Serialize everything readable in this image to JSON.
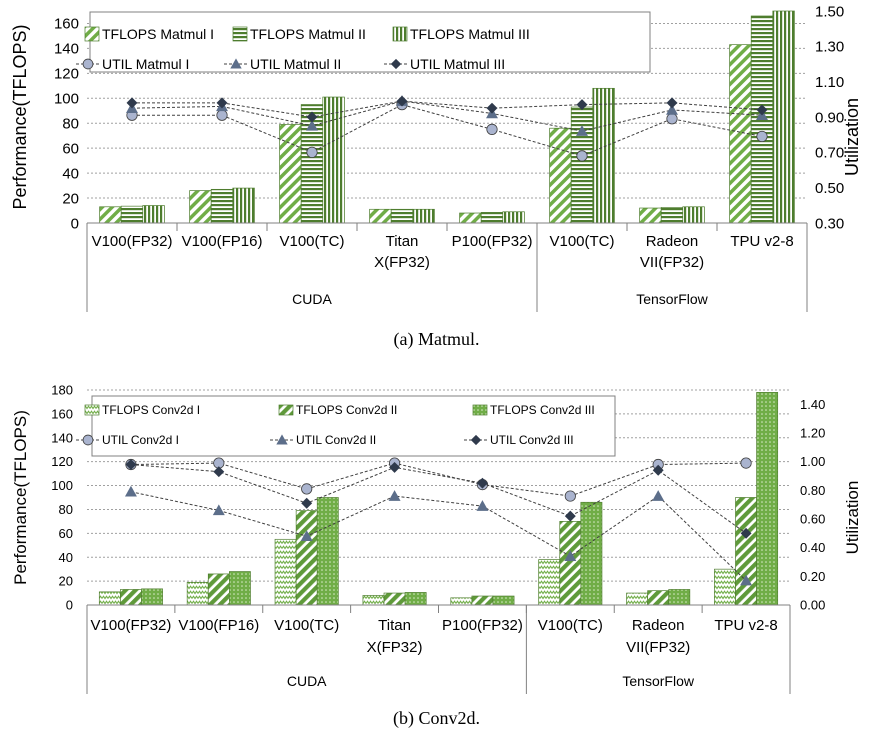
{
  "chart_data": [
    {
      "type": "bar",
      "caption": "(a) Matmul.",
      "ylabel": "Performance(TFLOPS)",
      "y2label": "Utilization",
      "ylim": [
        0,
        170
      ],
      "y2lim": [
        0.3,
        1.5
      ],
      "yticks": [
        "0",
        "20",
        "40",
        "60",
        "80",
        "100",
        "120",
        "140",
        "160"
      ],
      "y2ticks": [
        "0.30",
        "0.50",
        "0.70",
        "0.90",
        "1.10",
        "1.30",
        "1.50"
      ],
      "categories": [
        "V100(FP32)",
        "V100(FP16)",
        "V100(TC)",
        "Titan X(FP32)",
        "P100(FP32)",
        "V100(TC)",
        "Radeon VII(FP32)",
        "TPU v2-8"
      ],
      "category_lines": [
        [
          "V100(FP32)"
        ],
        [
          "V100(FP16)"
        ],
        [
          "V100(TC)"
        ],
        [
          "Titan",
          "X(FP32)"
        ],
        [
          "P100(FP32)"
        ],
        [
          "V100(TC)"
        ],
        [
          "Radeon",
          "VII(FP32)"
        ],
        [
          "TPU v2-8"
        ]
      ],
      "groups": [
        {
          "label": "CUDA",
          "count": 5
        },
        {
          "label": "TensorFlow",
          "count": 3
        }
      ],
      "bar_series": [
        {
          "name": "TFLOPS Matmul I",
          "values": [
            13,
            26,
            79,
            11,
            8,
            76,
            12,
            143
          ]
        },
        {
          "name": "TFLOPS Matmul II",
          "values": [
            13.5,
            27,
            95,
            11,
            8.5,
            93,
            12.5,
            166
          ]
        },
        {
          "name": "TFLOPS Matmul III",
          "values": [
            14,
            28,
            101,
            11,
            9,
            108,
            13,
            170
          ]
        }
      ],
      "line_series": [
        {
          "name": "UTIL Matmul I",
          "values": [
            0.91,
            0.91,
            0.7,
            0.97,
            0.83,
            0.68,
            0.89,
            0.79
          ]
        },
        {
          "name": "UTIL Matmul II",
          "values": [
            0.95,
            0.96,
            0.85,
            0.99,
            0.92,
            0.82,
            0.94,
            0.91
          ]
        },
        {
          "name": "UTIL Matmul III",
          "values": [
            0.98,
            0.98,
            0.9,
            0.99,
            0.95,
            0.97,
            0.98,
            0.94
          ]
        }
      ],
      "grid": true,
      "legend": "top"
    },
    {
      "type": "bar",
      "caption": "(b) Conv2d.",
      "ylabel": "Performance(TFLOPS)",
      "y2label": "Utilization",
      "ylim": [
        0,
        180
      ],
      "y2lim": [
        0,
        1.5
      ],
      "yticks": [
        "0",
        "20",
        "40",
        "60",
        "80",
        "100",
        "120",
        "140",
        "160",
        "180"
      ],
      "y2ticks": [
        "0.00",
        "0.20",
        "0.40",
        "0.60",
        "0.80",
        "1.00",
        "1.20",
        "1.40"
      ],
      "categories": [
        "V100(FP32)",
        "V100(FP16)",
        "V100(TC)",
        "Titan X(FP32)",
        "P100(FP32)",
        "V100(TC)",
        "Radeon VII(FP32)",
        "TPU v2-8"
      ],
      "category_lines": [
        [
          "V100(FP32)"
        ],
        [
          "V100(FP16)"
        ],
        [
          "V100(TC)"
        ],
        [
          "Titan",
          "X(FP32)"
        ],
        [
          "P100(FP32)"
        ],
        [
          "V100(TC)"
        ],
        [
          "Radeon",
          "VII(FP32)"
        ],
        [
          "TPU v2-8"
        ]
      ],
      "groups": [
        {
          "label": "CUDA",
          "count": 5
        },
        {
          "label": "TensorFlow",
          "count": 3
        }
      ],
      "bar_series": [
        {
          "name": "TFLOPS Conv2d I",
          "values": [
            11,
            19,
            55,
            8,
            6,
            38,
            10,
            30
          ]
        },
        {
          "name": "TFLOPS Conv2d II",
          "values": [
            13,
            26,
            79,
            10,
            7.5,
            70,
            12,
            90
          ]
        },
        {
          "name": "TFLOPS Conv2d III",
          "values": [
            13.5,
            28,
            90,
            10.5,
            7.5,
            86,
            13,
            178
          ]
        }
      ],
      "line_series": [
        {
          "name": "UTIL Conv2d I",
          "values": [
            0.98,
            0.99,
            0.81,
            0.99,
            0.84,
            0.76,
            0.98,
            0.99
          ]
        },
        {
          "name": "UTIL Conv2d II",
          "values": [
            0.79,
            0.66,
            0.48,
            0.76,
            0.69,
            0.34,
            0.76,
            0.17
          ]
        },
        {
          "name": "UTIL Conv2d III",
          "values": [
            0.98,
            0.93,
            0.71,
            0.96,
            0.85,
            0.62,
            0.94,
            0.5
          ]
        }
      ],
      "grid": true,
      "legend": "top"
    }
  ],
  "colors": {
    "bar_fill": "#70ad47",
    "bar_dark": "#4e7d2e",
    "marker_circle": "#aab4cf",
    "marker_triangle": "#5c6e8a",
    "marker_diamond": "#2f3a4c",
    "line": "#404040",
    "grid": "#a0a0a0"
  }
}
